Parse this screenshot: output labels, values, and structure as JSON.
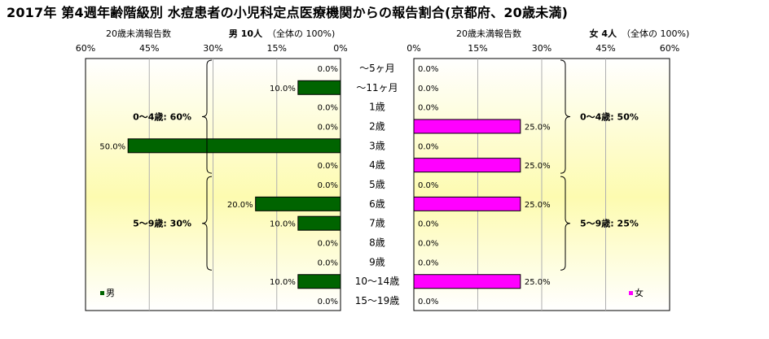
{
  "title": "2017年 第4週年齢階級別 水痘患者の小児科定点医療機関からの報告割合(京都府、20歳未満)",
  "chart_data": {
    "type": "bar",
    "orientation": "horizontal",
    "layout": "population-pyramid",
    "categories": [
      "～5ヶ月",
      "～11ヶ月",
      "1歳",
      "2歳",
      "3歳",
      "4歳",
      "5歳",
      "6歳",
      "7歳",
      "8歳",
      "9歳",
      "10～14歳",
      "15～19歳"
    ],
    "x_range": [
      0,
      60
    ],
    "ticks": [
      "0%",
      "15%",
      "30%",
      "45%",
      "60%"
    ],
    "grid": true,
    "panels": [
      {
        "side": "left",
        "axis_label": "20歳未満報告数",
        "header_bold": "男  10人",
        "header_note": "（全体の  100%)",
        "values": [
          0,
          10,
          0,
          0,
          50,
          0,
          0,
          20,
          10,
          0,
          0,
          10,
          0
        ],
        "value_labels": [
          "0.0%",
          "10.0%",
          "0.0%",
          "0.0%",
          "50.0%",
          "0.0%",
          "0.0%",
          "20.0%",
          "10.0%",
          "0.0%",
          "0.0%",
          "10.0%",
          "0.0%"
        ],
        "color": "#006400",
        "legend": "男",
        "groups": [
          {
            "label": "0～4歳: 60%",
            "from": 0,
            "to": 5
          },
          {
            "label": "5～9歳: 30%",
            "from": 6,
            "to": 10
          }
        ]
      },
      {
        "side": "right",
        "axis_label": "20歳未満報告数",
        "header_bold": "女  4人",
        "header_note": "（全体の  100%)",
        "values": [
          0,
          0,
          0,
          25,
          0,
          25,
          0,
          25,
          0,
          0,
          0,
          25,
          0
        ],
        "value_labels": [
          "0.0%",
          "0.0%",
          "0.0%",
          "25.0%",
          "0.0%",
          "25.0%",
          "0.0%",
          "25.0%",
          "0.0%",
          "0.0%",
          "0.0%",
          "25.0%",
          "0.0%"
        ],
        "color": "#ff00ff",
        "legend": "女",
        "groups": [
          {
            "label": "0～4歳: 50%",
            "from": 0,
            "to": 5
          },
          {
            "label": "5～9歳: 25%",
            "from": 6,
            "to": 10
          }
        ]
      }
    ]
  }
}
